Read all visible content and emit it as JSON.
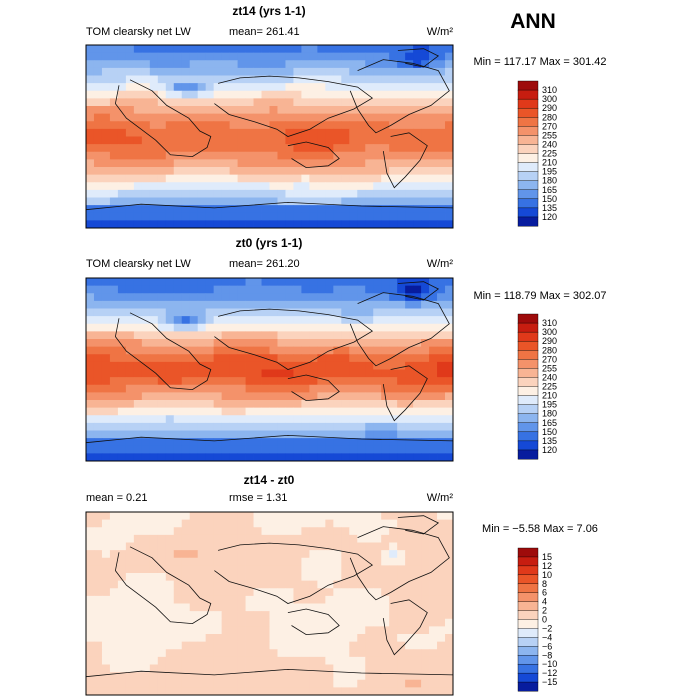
{
  "season": "ANN",
  "units": "W/m²",
  "chart_data": [
    {
      "type": "heatmap",
      "title": "zt14 (yrs 1-1)",
      "variable": "TOM clearsky net LW",
      "mean_text": "mean= 261.41",
      "min_max_text": "Min = 117.17 Max = 301.42",
      "units": "W/m²",
      "field": "absolute",
      "colorbar": {
        "levels": [
          "310",
          "300",
          "290",
          "280",
          "270",
          "255",
          "240",
          "225",
          "210",
          "195",
          "180",
          "165",
          "150",
          "135",
          "120"
        ],
        "colors": [
          "#9e0b0b",
          "#c71d10",
          "#e0391a",
          "#ea5528",
          "#ef7444",
          "#f4926a",
          "#f8b494",
          "#fbd3bd",
          "#fdf0e4",
          "#dfebfb",
          "#b7d1f5",
          "#8cb5ef",
          "#6195ea",
          "#3772e3",
          "#1549d6",
          "#071c9e"
        ]
      },
      "grid": false
    },
    {
      "type": "heatmap",
      "title": "zt0 (yrs 1-1)",
      "variable": "TOM clearsky net LW",
      "mean_text": "mean= 261.20",
      "min_max_text": "Min = 118.79 Max = 302.07",
      "units": "W/m²",
      "field": "absolute",
      "colorbar": {
        "levels": [
          "310",
          "300",
          "290",
          "280",
          "270",
          "255",
          "240",
          "225",
          "210",
          "195",
          "180",
          "165",
          "150",
          "135",
          "120"
        ],
        "colors": [
          "#9e0b0b",
          "#c71d10",
          "#e0391a",
          "#ea5528",
          "#ef7444",
          "#f4926a",
          "#f8b494",
          "#fbd3bd",
          "#fdf0e4",
          "#dfebfb",
          "#b7d1f5",
          "#8cb5ef",
          "#6195ea",
          "#3772e3",
          "#1549d6",
          "#071c9e"
        ]
      },
      "grid": false
    },
    {
      "type": "heatmap",
      "title": "zt14 - zt0",
      "mean_text": "mean =    0.21",
      "rmse_text": "rmse =    1.31",
      "min_max_text": "Min =  −5.58 Max =    7.06",
      "units": "W/m²",
      "field": "difference",
      "colorbar": {
        "levels": [
          "15",
          "12",
          "10",
          "8",
          "6",
          "4",
          "2",
          "0",
          "−2",
          "−4",
          "−6",
          "−8",
          "−10",
          "−12",
          "−15"
        ],
        "colors": [
          "#9e0b0b",
          "#c71d10",
          "#e0391a",
          "#ea5528",
          "#ef7444",
          "#f4926a",
          "#f8b494",
          "#fbd3bd",
          "#fdf0e4",
          "#dfebfb",
          "#b7d1f5",
          "#8cb5ef",
          "#6195ea",
          "#3772e3",
          "#1549d6",
          "#071c9e"
        ]
      },
      "grid": false
    }
  ]
}
